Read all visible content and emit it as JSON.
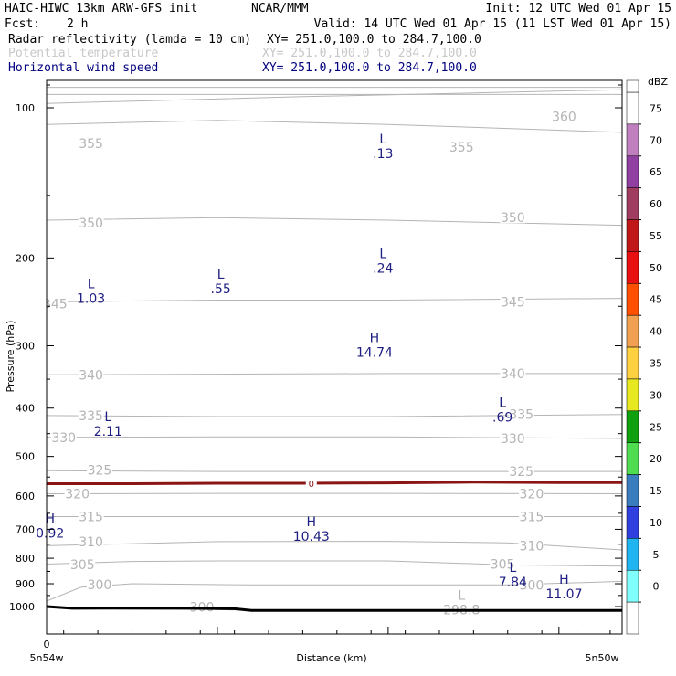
{
  "header": {
    "model": "HAIC-HIWC 13km ARW-GFS init",
    "center": "NCAR/MMM",
    "init": "Init: 12 UTC Wed 01 Apr 15",
    "fcst_label": "Fcst:",
    "fcst_value": "2 h",
    "valid": "Valid: 14 UTC Wed 01 Apr 15 (11 LST Wed 01 Apr 15)",
    "fields": [
      {
        "name": "Radar reflectivity (lamda = 10 cm)",
        "xy": "XY= 251.0,100.0 to 284.7,100.0",
        "style": "black"
      },
      {
        "name": "Potential temperature",
        "xy": "XY= 251.0,100.0 to 284.7,100.0",
        "style": "gray"
      },
      {
        "name": "Horizontal wind speed",
        "xy": "XY= 251.0,100.0 to 284.7,100.0",
        "style": "blue"
      }
    ]
  },
  "chart_data": {
    "type": "cross-section",
    "ylabel": "Pressure (hPa)",
    "xlabel": "Distance (km)",
    "x_start_label": "5n54w",
    "x_end_label": "5n50w",
    "x_zero": "0",
    "ylim": [
      1050,
      50
    ],
    "y_log": true,
    "y_ticks": [
      100,
      200,
      300,
      400,
      500,
      600,
      700,
      800,
      900,
      1000
    ],
    "x_range": [
      0,
      33.7
    ],
    "x_ticks": [
      0,
      10,
      20,
      30
    ],
    "colors": {
      "theta": "#b4b4b4",
      "wind": "#1e1e82",
      "freezing": "#8b1414",
      "terrain": "#000000"
    },
    "theta_lines": [
      {
        "value": 360,
        "points": [
          [
            0,
            98
          ],
          [
            15,
            95
          ],
          [
            33.7,
            92
          ]
        ],
        "labels": [
          {
            "x": 30.3,
            "p": 104
          }
        ]
      },
      {
        "value": 355,
        "points": [
          [
            0,
            108
          ],
          [
            10,
            106
          ],
          [
            20,
            108
          ],
          [
            33.7,
            112
          ]
        ],
        "labels": [
          {
            "x": 2.6,
            "p": 118
          },
          {
            "x": 24.3,
            "p": 120
          }
        ]
      },
      {
        "value": 350,
        "points": [
          [
            0,
            168
          ],
          [
            10,
            166
          ],
          [
            20,
            168
          ],
          [
            33.7,
            172
          ]
        ],
        "labels": [
          {
            "x": 2.6,
            "p": 170
          },
          {
            "x": 27.3,
            "p": 166
          }
        ]
      },
      {
        "value": 345,
        "points": [
          [
            0,
            245
          ],
          [
            10,
            243
          ],
          [
            20,
            243
          ],
          [
            33.7,
            241
          ]
        ],
        "labels": [
          {
            "x": 0.5,
            "p": 247
          },
          {
            "x": 27.3,
            "p": 245
          }
        ]
      },
      {
        "value": 340,
        "points": [
          [
            0,
            343
          ],
          [
            10,
            342
          ],
          [
            20,
            341
          ],
          [
            33.7,
            341
          ]
        ],
        "labels": [
          {
            "x": 2.6,
            "p": 343
          },
          {
            "x": 27.3,
            "p": 341
          }
        ]
      },
      {
        "value": 335,
        "points": [
          [
            0,
            414
          ],
          [
            10,
            416
          ],
          [
            20,
            416
          ],
          [
            33.7,
            412
          ]
        ],
        "labels": [
          {
            "x": 2.6,
            "p": 414
          },
          {
            "x": 27.8,
            "p": 412
          }
        ]
      },
      {
        "value": 330,
        "points": [
          [
            0,
            458
          ],
          [
            10,
            457
          ],
          [
            20,
            457
          ],
          [
            33.7,
            460
          ]
        ],
        "labels": [
          {
            "x": 1.0,
            "p": 458
          },
          {
            "x": 27.3,
            "p": 460
          }
        ]
      },
      {
        "value": 325,
        "points": [
          [
            0,
            534
          ],
          [
            10,
            536
          ],
          [
            20,
            536
          ],
          [
            33.7,
            536
          ]
        ],
        "labels": [
          {
            "x": 3.1,
            "p": 532
          },
          {
            "x": 27.8,
            "p": 536
          }
        ]
      },
      {
        "value": 320,
        "points": [
          [
            0,
            594
          ],
          [
            10,
            593
          ],
          [
            20,
            593
          ],
          [
            33.7,
            594
          ]
        ],
        "labels": [
          {
            "x": 1.8,
            "p": 594
          },
          {
            "x": 28.4,
            "p": 594
          }
        ]
      },
      {
        "value": 315,
        "points": [
          [
            0,
            660
          ],
          [
            10,
            660
          ],
          [
            20,
            660
          ],
          [
            33.7,
            660
          ]
        ],
        "labels": [
          {
            "x": 2.6,
            "p": 660
          },
          {
            "x": 28.4,
            "p": 660
          }
        ]
      },
      {
        "value": 310,
        "points": [
          [
            0,
            755
          ],
          [
            10,
            741
          ],
          [
            20,
            740
          ],
          [
            27,
            745
          ],
          [
            33.7,
            770
          ]
        ],
        "labels": [
          {
            "x": 2.6,
            "p": 741
          },
          {
            "x": 28.4,
            "p": 756
          }
        ]
      },
      {
        "value": 305,
        "points": [
          [
            0,
            822
          ],
          [
            5,
            812
          ],
          [
            10,
            810
          ],
          [
            20,
            810
          ],
          [
            27,
            825
          ],
          [
            33.7,
            830
          ]
        ],
        "labels": [
          {
            "x": 2.1,
            "p": 823
          },
          {
            "x": 26.7,
            "p": 822
          }
        ]
      },
      {
        "value": 300,
        "points": [
          [
            0,
            975
          ],
          [
            2,
            915
          ],
          [
            5,
            900
          ],
          [
            12,
            905
          ],
          [
            20,
            905
          ],
          [
            27,
            905
          ],
          [
            33.7,
            890
          ]
        ],
        "labels": [
          {
            "x": 3.1,
            "p": 904
          },
          {
            "x": 28.4,
            "p": 906
          }
        ]
      },
      {
        "value": 300,
        "points": [
          [
            4,
            1012
          ],
          [
            9,
            1012
          ],
          [
            13,
            1020
          ],
          [
            20,
            1020
          ]
        ],
        "labels": [
          {
            "x": 9.1,
            "p": 1003
          }
        ]
      }
    ],
    "freezing_level": {
      "value": "0",
      "points": [
        [
          0,
          567
        ],
        [
          5,
          567
        ],
        [
          10,
          566
        ],
        [
          15,
          566
        ],
        [
          20,
          565
        ],
        [
          25,
          563
        ],
        [
          30,
          564
        ],
        [
          33.7,
          564
        ]
      ],
      "label_x": 15.5
    },
    "terrain": [
      [
        0,
        1000
      ],
      [
        1.5,
        1008
      ],
      [
        4,
        1007
      ],
      [
        8,
        1008
      ],
      [
        11,
        1010
      ],
      [
        12,
        1018
      ],
      [
        15,
        1018
      ],
      [
        33.7,
        1018
      ]
    ],
    "wind_labels": [
      {
        "type": "L",
        "value": ".13",
        "x": 19.7,
        "p": 118
      },
      {
        "type": "L",
        "value": ".24",
        "x": 19.7,
        "p": 200
      },
      {
        "type": "L",
        "value": "1.03",
        "x": 2.6,
        "p": 230
      },
      {
        "type": "L",
        "value": ".55",
        "x": 10.2,
        "p": 220
      },
      {
        "type": "H",
        "value": "14.74",
        "x": 19.2,
        "p": 295
      },
      {
        "type": "L",
        "value": "2.11",
        "x": 3.6,
        "p": 425
      },
      {
        "type": "L",
        "value": ".69",
        "x": 26.7,
        "p": 398
      },
      {
        "type": "H",
        "value": "0.92",
        "x": 0.2,
        "p": 680
      },
      {
        "type": "H",
        "value": "10.43",
        "x": 15.5,
        "p": 690
      },
      {
        "type": "L",
        "value": "7.84",
        "x": 27.3,
        "p": 852
      },
      {
        "type": "H",
        "value": "11.07",
        "x": 30.3,
        "p": 900
      }
    ],
    "theta_min": {
      "type": "L",
      "value": "298.8",
      "x": 24.3,
      "p": 990
    },
    "colorbar": {
      "label": "dBZ",
      "ticks": [
        "75",
        "70",
        "65",
        "60",
        "55",
        "50",
        "45",
        "40",
        "35",
        "30",
        "25",
        "20",
        "15",
        "10",
        "5",
        "0"
      ],
      "colors": [
        "#ffffff",
        "#c080c0",
        "#9040a0",
        "#a03c60",
        "#c01818",
        "#e81010",
        "#ff5000",
        "#f0a050",
        "#ffd040",
        "#e8e820",
        "#10a010",
        "#50dc50",
        "#3a7dbf",
        "#3040e0",
        "#20b4f0",
        "#80ffff",
        "#ffffff"
      ]
    }
  }
}
